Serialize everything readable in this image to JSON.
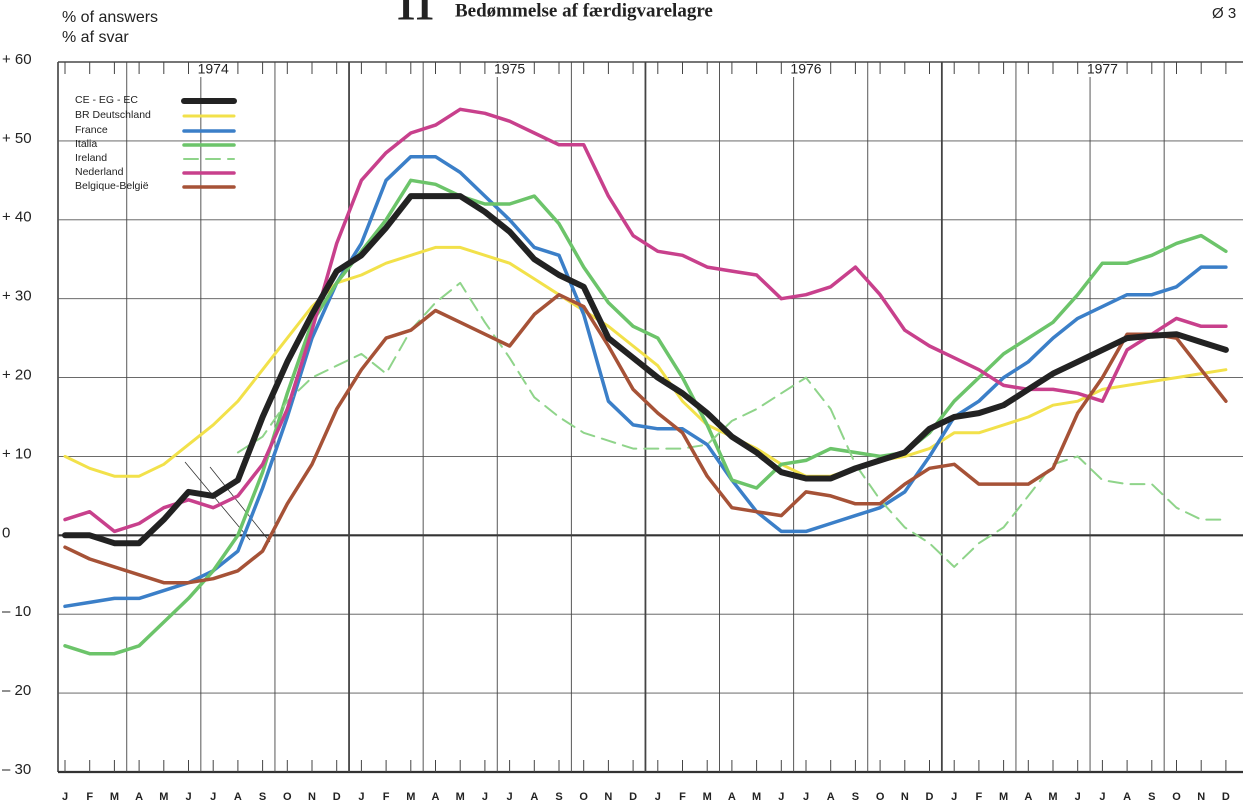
{
  "chart_data": {
    "type": "line",
    "title": "11",
    "subtitle": "Bedømmelse af færdigvarelagre",
    "corner_note": "Ø 3",
    "y_axis_label": [
      "% of answers",
      "% af svar"
    ],
    "years": [
      "1974",
      "1975",
      "1976",
      "1977"
    ],
    "categories": [
      "J",
      "F",
      "M",
      "A",
      "M",
      "J",
      "J",
      "A",
      "S",
      "O",
      "N",
      "D",
      "J",
      "F",
      "M",
      "A",
      "M",
      "J",
      "J",
      "A",
      "S",
      "O",
      "N",
      "D",
      "J",
      "F",
      "M",
      "A",
      "M",
      "J",
      "J",
      "A",
      "S",
      "O",
      "N",
      "D",
      "J",
      "F",
      "M",
      "A",
      "M",
      "J",
      "J",
      "A",
      "S",
      "O",
      "N",
      "D"
    ],
    "ylim": [
      -30,
      60
    ],
    "yticks": [
      {
        "value": 60,
        "label": "+ 60"
      },
      {
        "value": 50,
        "label": "+ 50"
      },
      {
        "value": 40,
        "label": "+ 40"
      },
      {
        "value": 30,
        "label": "+ 30"
      },
      {
        "value": 20,
        "label": "+ 20"
      },
      {
        "value": 10,
        "label": "+ 10"
      },
      0,
      {
        "value": -10,
        "label": "– 10"
      },
      {
        "value": -20,
        "label": "– 20"
      },
      {
        "value": -30,
        "label": "– 30"
      }
    ],
    "grid": true,
    "legend": "upper left",
    "series": [
      {
        "name": "CE - EG - EC",
        "color": "#222222",
        "width": 6,
        "values": [
          0,
          0,
          -1,
          -1,
          2,
          5.5,
          5,
          7,
          15,
          22,
          28,
          33.5,
          35.5,
          39,
          43,
          43,
          43,
          41,
          38.5,
          35,
          33,
          31.5,
          25,
          22.5,
          20,
          18,
          15.5,
          12.5,
          10.5,
          8,
          7.2,
          7.2,
          8.5,
          9.5,
          10.5,
          13.5,
          15,
          15.5,
          16.5,
          18.5,
          20.5,
          22,
          23.5,
          25,
          25.3,
          25.5,
          24.5,
          23.5
        ]
      },
      {
        "name": "BR  Deutschland",
        "color": "#f2e14a",
        "width": 3,
        "values": [
          10,
          8.5,
          7.5,
          7.5,
          9,
          11.5,
          14,
          17,
          21,
          25,
          29,
          32,
          33,
          34.5,
          35.5,
          36.5,
          36.5,
          35.5,
          34.5,
          32.5,
          30.5,
          28.5,
          26.5,
          24,
          21.5,
          17,
          14,
          12.5,
          11,
          9,
          7.5,
          7.5,
          8.5,
          9.5,
          10,
          11,
          13,
          13,
          14,
          15,
          16.5,
          17,
          18.5,
          19,
          19.5,
          20,
          20.5,
          21
        ]
      },
      {
        "name": "France",
        "color": "#3b7fc8",
        "width": 3.5,
        "values": [
          -9,
          -8.5,
          -8,
          -8,
          -7,
          -6,
          -4.5,
          -2,
          6,
          15,
          25,
          32,
          37,
          45,
          48,
          48,
          46,
          43,
          40,
          36.5,
          35.5,
          28,
          17,
          14,
          13.5,
          13.5,
          11.5,
          7,
          3,
          0.5,
          0.5,
          1.5,
          2.5,
          3.5,
          5.5,
          10,
          15,
          17,
          20,
          22,
          25,
          27.5,
          29,
          30.5,
          30.5,
          31.5,
          34,
          34
        ]
      },
      {
        "name": "Italia",
        "color": "#6cc46a",
        "width": 3.5,
        "values": [
          -14,
          -15,
          -15,
          -14,
          -11,
          -8,
          -4.5,
          0,
          8,
          18,
          27,
          32,
          36,
          40,
          45,
          44.5,
          43,
          42,
          42,
          43,
          39.5,
          34,
          29.5,
          26.5,
          25,
          20,
          14,
          7,
          6,
          9,
          9.5,
          11,
          10.5,
          10,
          10.5,
          13,
          17,
          20,
          23,
          25,
          27,
          30.5,
          34.5,
          34.5,
          35.5,
          37,
          38,
          36
        ]
      },
      {
        "name": "Ireland",
        "color": "#8fd48a",
        "width": 2,
        "dashed": true,
        "values": [
          null,
          null,
          null,
          null,
          null,
          null,
          null,
          10.5,
          12.5,
          17,
          20,
          21.5,
          23,
          20.5,
          26,
          29.5,
          32,
          27,
          22.5,
          17.5,
          15,
          13,
          12,
          11,
          11,
          11,
          11.5,
          14.5,
          16,
          18,
          20,
          16,
          9,
          4.5,
          1,
          -1,
          -4,
          -1,
          1,
          5,
          9,
          10,
          7,
          6.5,
          6.5,
          3.5,
          2,
          2
        ]
      },
      {
        "name": "Nederland",
        "color": "#c8408c",
        "width": 3.5,
        "values": [
          2,
          3,
          0.5,
          1.5,
          3.5,
          4.5,
          3.5,
          5,
          9,
          16,
          26,
          37,
          45,
          48.5,
          51,
          52,
          54,
          53.5,
          52.5,
          51,
          49.5,
          49.5,
          43,
          38,
          36,
          35.5,
          34,
          33.5,
          33,
          30,
          30.5,
          31.5,
          34,
          30.5,
          26,
          24,
          22.5,
          21,
          19,
          18.5,
          18.5,
          18,
          17,
          23.5,
          25.5,
          27.5,
          26.5,
          26.5
        ]
      },
      {
        "name": "Belgique-België",
        "color": "#a65237",
        "width": 3.5,
        "values": [
          -1.5,
          -3,
          -4,
          -5,
          -6,
          -6,
          -5.5,
          -4.5,
          -2,
          4,
          9,
          16,
          21,
          25,
          26,
          28.5,
          27,
          25.5,
          24,
          28,
          30.5,
          29,
          24,
          18.5,
          15.5,
          13,
          7.5,
          3.5,
          3,
          2.5,
          5.5,
          5,
          4,
          4,
          6.5,
          8.5,
          9,
          6.5,
          6.5,
          6.5,
          8.5,
          15.5,
          20,
          25.5,
          25.5,
          25,
          21,
          17
        ]
      }
    ]
  }
}
